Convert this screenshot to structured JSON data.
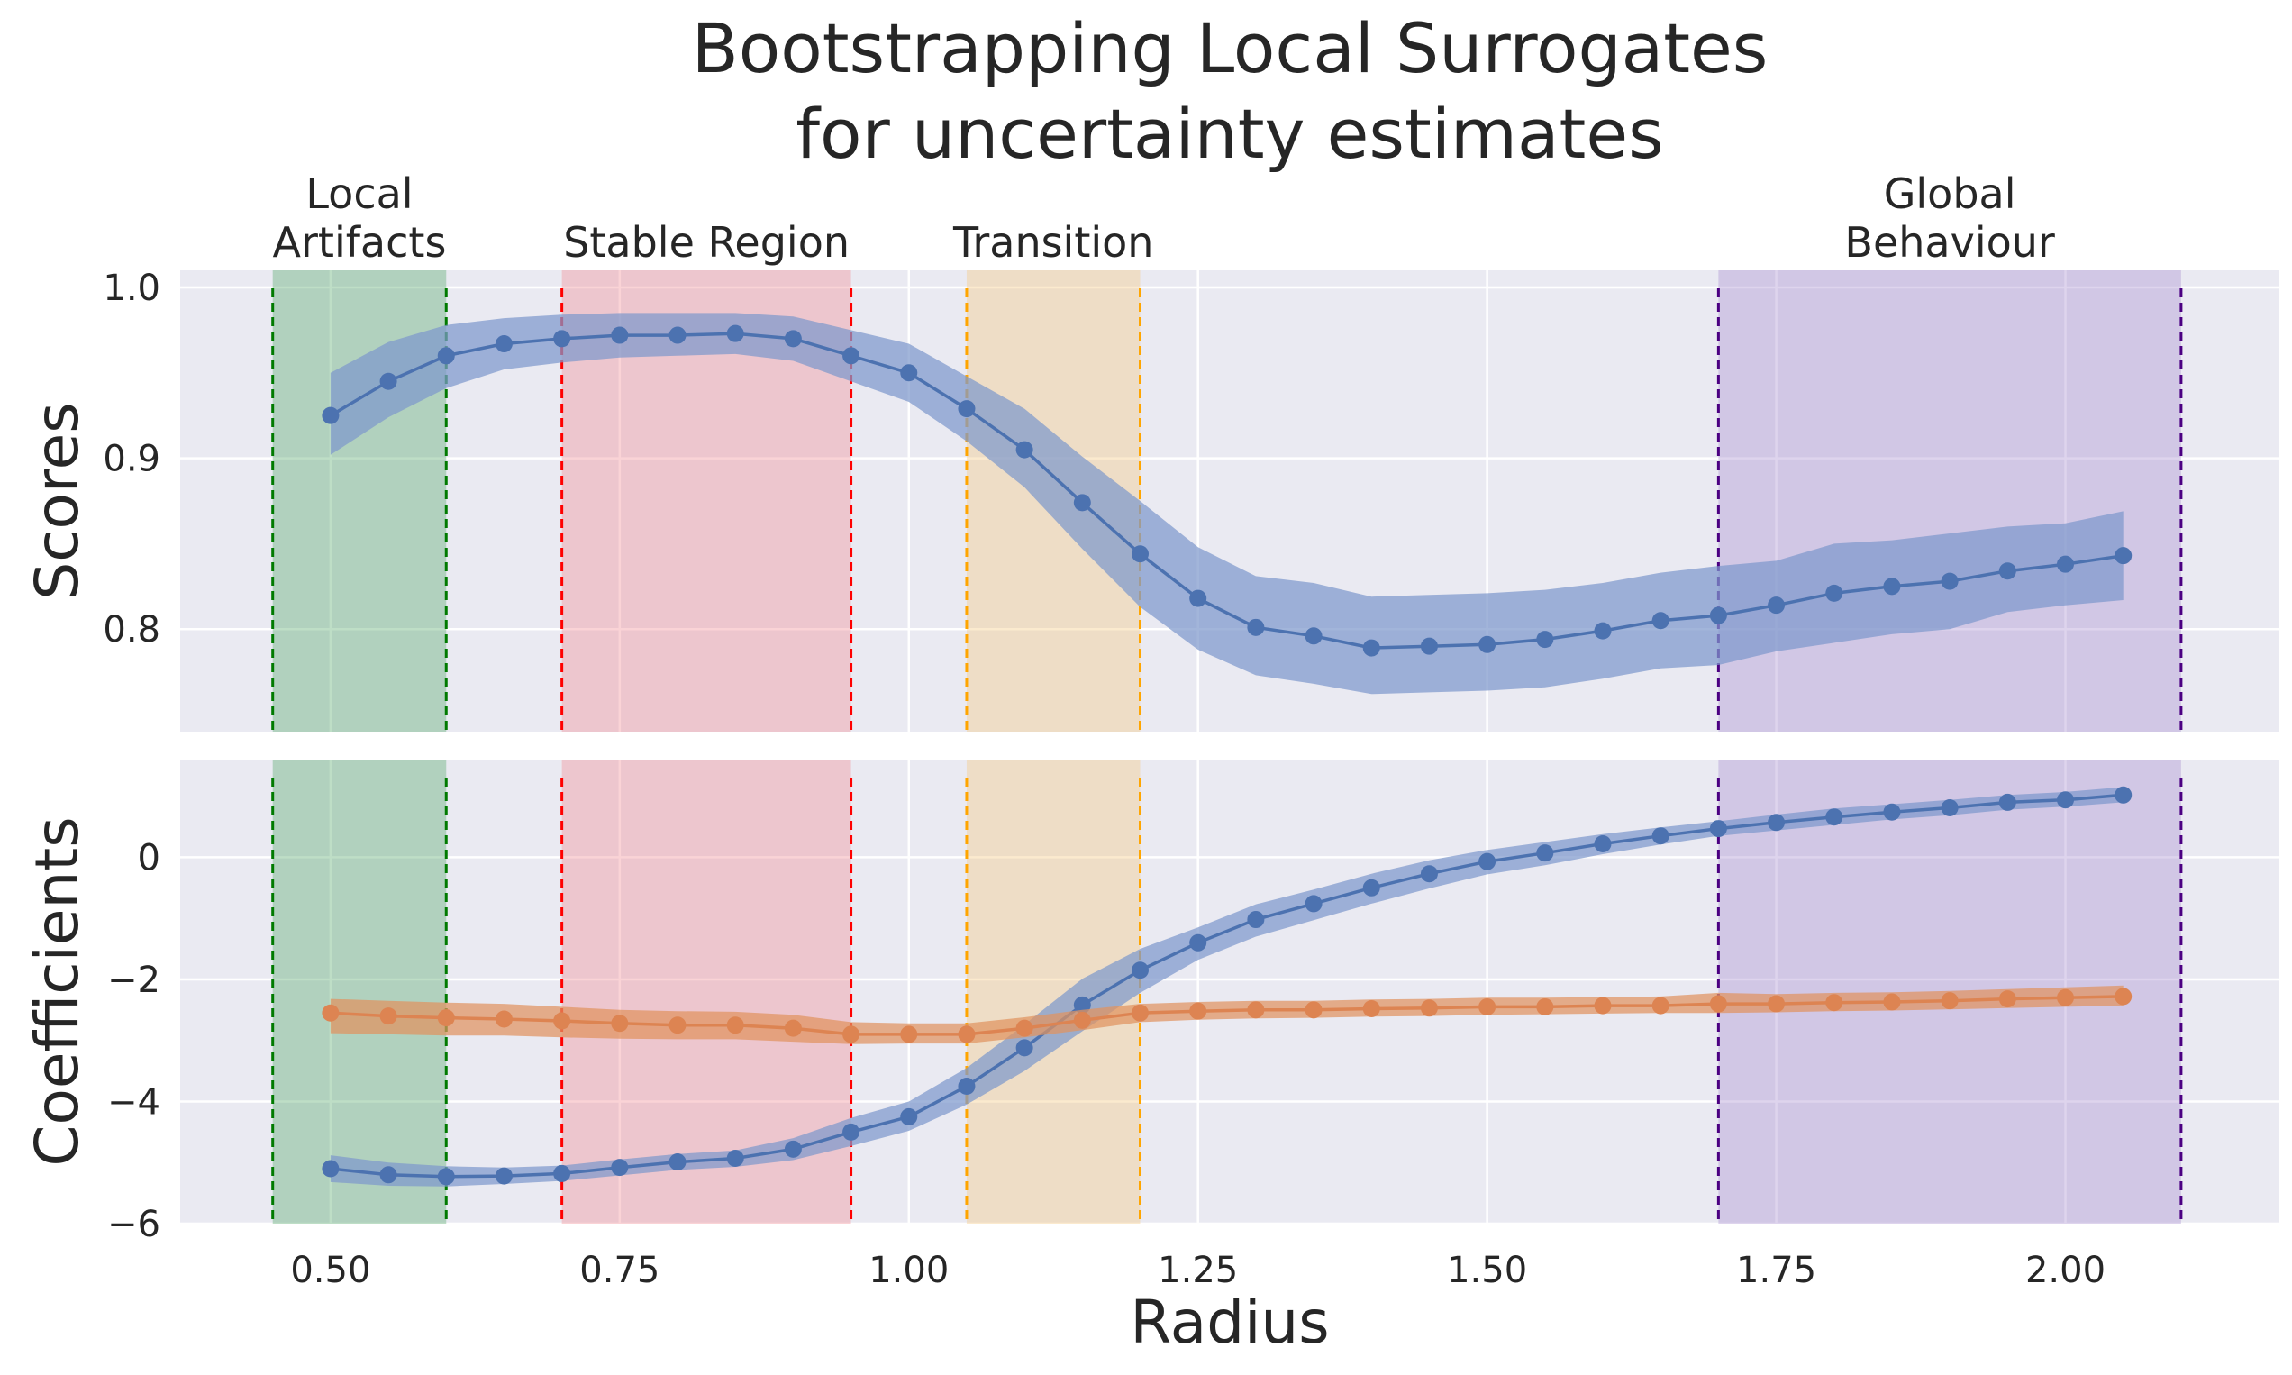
{
  "chart_data": {
    "title_lines": [
      "Bootstrapping Local Surrogates",
      "for uncertainty estimates"
    ],
    "xlabel": "Radius",
    "xlim": [
      0.37,
      2.185
    ],
    "x_ticks": [
      0.5,
      0.75,
      1.0,
      1.25,
      1.5,
      1.75,
      2.0
    ],
    "x_tick_labels": [
      "0.50",
      "0.75",
      "1.00",
      "1.25",
      "1.50",
      "1.75",
      "2.00"
    ],
    "x": [
      0.5,
      0.55,
      0.6,
      0.65,
      0.7,
      0.75,
      0.8,
      0.85,
      0.9,
      0.95,
      1.0,
      1.05,
      1.1,
      1.15,
      1.2,
      1.25,
      1.3,
      1.35,
      1.4,
      1.45,
      1.5,
      1.55,
      1.6,
      1.65,
      1.7,
      1.75,
      1.8,
      1.85,
      1.9,
      1.95,
      2.0,
      2.05
    ],
    "grid": true,
    "regions": [
      {
        "label_lines": [
          "Local",
          "Artifacts"
        ],
        "x_start": 0.45,
        "x_end": 0.6,
        "fill": "#55a868",
        "line": "#007a00"
      },
      {
        "label_lines": [
          "Stable Region"
        ],
        "x_start": 0.7,
        "x_end": 0.95,
        "fill": "#f28b93",
        "line": "#ff0000"
      },
      {
        "label_lines": [
          "Transition"
        ],
        "x_start": 1.05,
        "x_end": 1.2,
        "fill": "#f5c77e",
        "line": "#ffa500"
      },
      {
        "label_lines": [
          "Global",
          "Behaviour"
        ],
        "x_start": 1.7,
        "x_end": 2.1,
        "fill": "#a98fcf",
        "line": "#4b0082"
      }
    ],
    "panels": [
      {
        "type": "line",
        "ylabel": "Scores",
        "ylim": [
          0.74,
          1.01
        ],
        "y_ticks": [
          0.8,
          0.9,
          1.0
        ],
        "y_tick_labels": [
          "0.8",
          "0.9",
          "1.0"
        ],
        "series": [
          {
            "color": "#4c72b0",
            "band_color": "#7e99cc",
            "mean": [
              0.925,
              0.945,
              0.96,
              0.967,
              0.97,
              0.972,
              0.972,
              0.973,
              0.97,
              0.96,
              0.95,
              0.929,
              0.905,
              0.874,
              0.844,
              0.818,
              0.801,
              0.796,
              0.789,
              0.79,
              0.791,
              0.794,
              0.799,
              0.805,
              0.808,
              0.814,
              0.821,
              0.825,
              0.828,
              0.834,
              0.838,
              0.843
            ],
            "lower": [
              0.902,
              0.924,
              0.941,
              0.952,
              0.956,
              0.959,
              0.96,
              0.961,
              0.957,
              0.945,
              0.933,
              0.91,
              0.883,
              0.847,
              0.813,
              0.788,
              0.773,
              0.768,
              0.762,
              0.763,
              0.764,
              0.766,
              0.771,
              0.777,
              0.779,
              0.787,
              0.792,
              0.797,
              0.8,
              0.81,
              0.814,
              0.817
            ],
            "upper": [
              0.95,
              0.968,
              0.978,
              0.982,
              0.984,
              0.985,
              0.985,
              0.985,
              0.983,
              0.975,
              0.967,
              0.948,
              0.929,
              0.901,
              0.875,
              0.848,
              0.831,
              0.827,
              0.819,
              0.82,
              0.821,
              0.823,
              0.827,
              0.833,
              0.837,
              0.84,
              0.85,
              0.852,
              0.856,
              0.86,
              0.862,
              0.869
            ]
          }
        ]
      },
      {
        "type": "line",
        "ylabel": "Coefficients",
        "ylim": [
          -6.0,
          1.6
        ],
        "y_ticks": [
          -6,
          -4,
          -2,
          0
        ],
        "y_tick_labels": [
          "−6",
          "−4",
          "−2",
          "0"
        ],
        "series": [
          {
            "color": "#4c72b0",
            "band_color": "#7e99cc",
            "mean": [
              -5.1,
              -5.2,
              -5.23,
              -5.22,
              -5.18,
              -5.08,
              -4.99,
              -4.93,
              -4.78,
              -4.5,
              -4.25,
              -3.75,
              -3.12,
              -2.42,
              -1.85,
              -1.4,
              -1.02,
              -0.76,
              -0.5,
              -0.27,
              -0.07,
              0.07,
              0.22,
              0.35,
              0.47,
              0.57,
              0.66,
              0.74,
              0.81,
              0.9,
              0.94,
              1.02
            ],
            "lower": [
              -5.32,
              -5.38,
              -5.39,
              -5.35,
              -5.3,
              -5.21,
              -5.12,
              -5.07,
              -4.96,
              -4.73,
              -4.48,
              -4.05,
              -3.5,
              -2.85,
              -2.22,
              -1.68,
              -1.3,
              -1.03,
              -0.76,
              -0.51,
              -0.28,
              -0.13,
              0.05,
              0.21,
              0.35,
              0.44,
              0.53,
              0.62,
              0.69,
              0.78,
              0.83,
              0.9
            ],
            "upper": [
              -4.88,
              -5.0,
              -5.06,
              -5.08,
              -5.05,
              -4.95,
              -4.86,
              -4.8,
              -4.6,
              -4.27,
              -4.0,
              -3.45,
              -2.74,
              -1.99,
              -1.5,
              -1.15,
              -0.77,
              -0.53,
              -0.27,
              -0.05,
              0.12,
              0.25,
              0.38,
              0.49,
              0.59,
              0.7,
              0.8,
              0.87,
              0.94,
              1.02,
              1.07,
              1.15
            ]
          },
          {
            "color": "#dd8452",
            "band_color": "#e0935f",
            "mean": [
              -2.55,
              -2.6,
              -2.63,
              -2.65,
              -2.68,
              -2.72,
              -2.75,
              -2.75,
              -2.8,
              -2.9,
              -2.9,
              -2.9,
              -2.8,
              -2.67,
              -2.55,
              -2.52,
              -2.5,
              -2.5,
              -2.48,
              -2.47,
              -2.45,
              -2.45,
              -2.43,
              -2.43,
              -2.4,
              -2.4,
              -2.38,
              -2.37,
              -2.35,
              -2.32,
              -2.3,
              -2.28
            ],
            "lower": [
              -2.88,
              -2.9,
              -2.92,
              -2.92,
              -2.95,
              -2.97,
              -2.98,
              -2.98,
              -3.02,
              -3.06,
              -3.05,
              -3.05,
              -2.95,
              -2.83,
              -2.7,
              -2.66,
              -2.64,
              -2.63,
              -2.61,
              -2.6,
              -2.58,
              -2.57,
              -2.56,
              -2.55,
              -2.55,
              -2.54,
              -2.52,
              -2.51,
              -2.49,
              -2.47,
              -2.45,
              -2.43
            ],
            "upper": [
              -2.32,
              -2.35,
              -2.38,
              -2.4,
              -2.45,
              -2.5,
              -2.52,
              -2.53,
              -2.58,
              -2.7,
              -2.72,
              -2.72,
              -2.62,
              -2.5,
              -2.4,
              -2.37,
              -2.35,
              -2.35,
              -2.33,
              -2.32,
              -2.3,
              -2.3,
              -2.29,
              -2.28,
              -2.22,
              -2.24,
              -2.22,
              -2.21,
              -2.19,
              -2.16,
              -2.13,
              -2.1
            ]
          }
        ]
      }
    ]
  }
}
